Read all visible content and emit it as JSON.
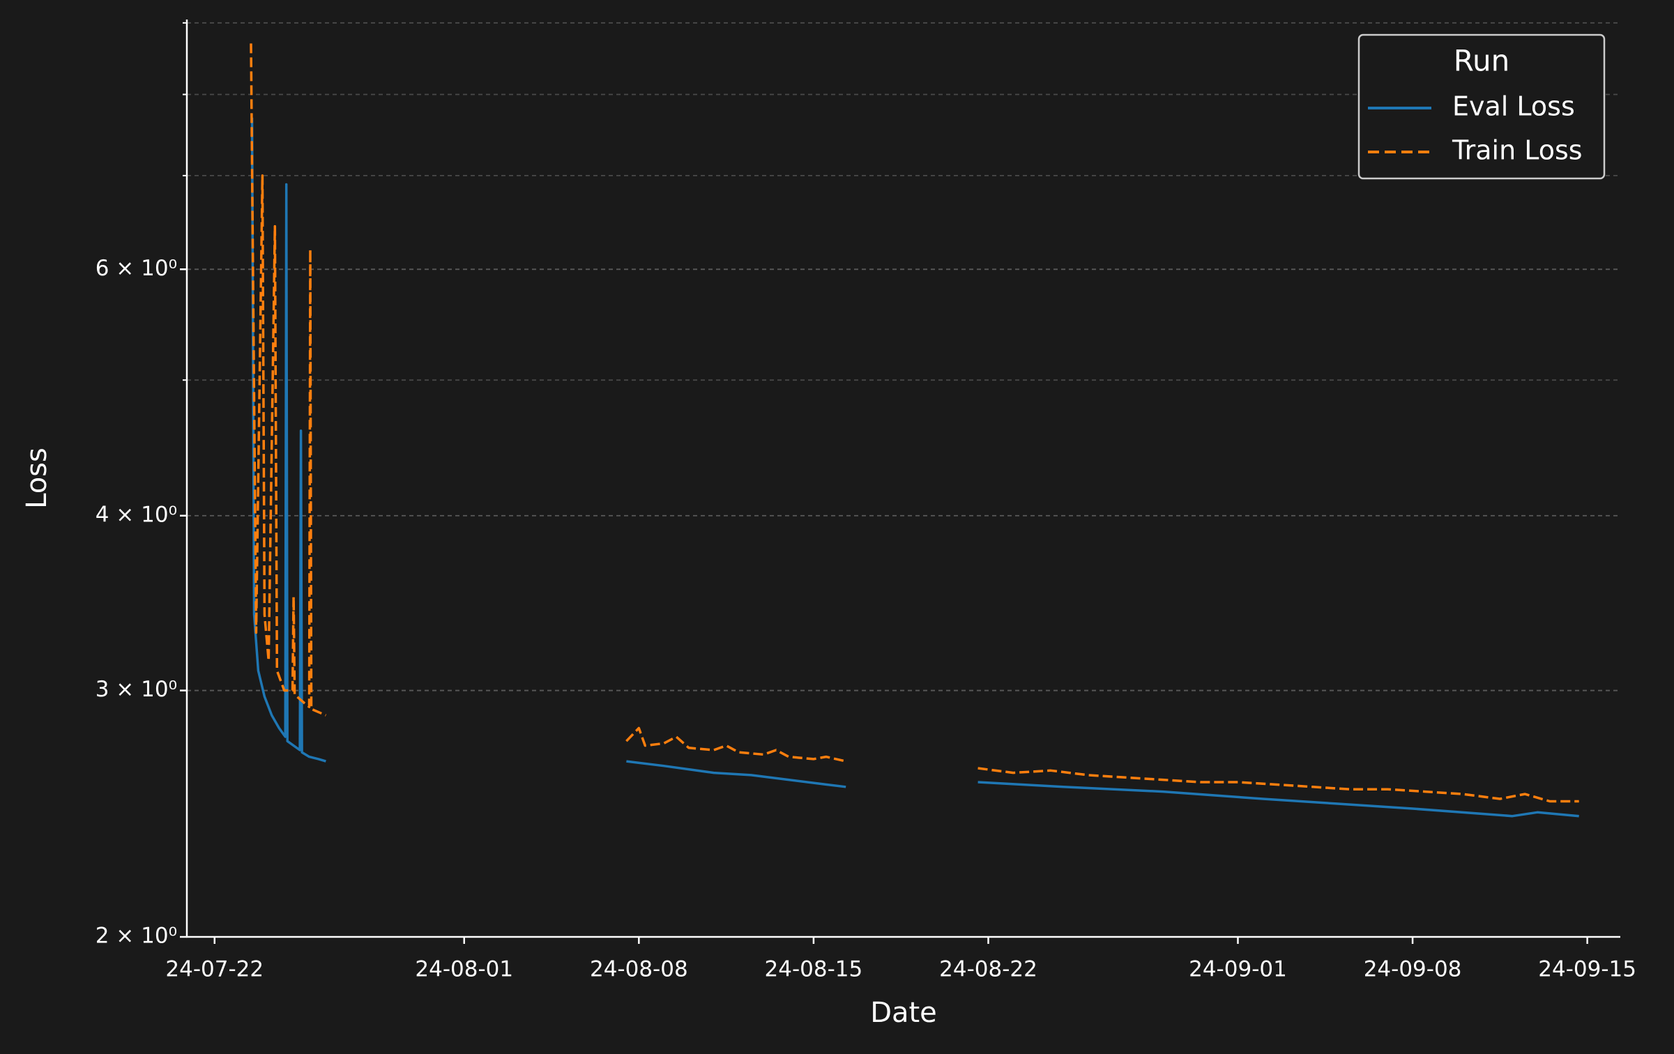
{
  "chart_data": {
    "type": "line",
    "xlabel": "Date",
    "ylabel": "Loss",
    "yscale": "log",
    "grid": true,
    "legend_title": "Run",
    "legend_loc": "upper right",
    "xlim": [
      "2024-07-20T21:20",
      "2024-09-16T07:45"
    ],
    "ylim": [
      2,
      9.05
    ],
    "xticks": [
      {
        "value": "2024-07-22T00:00",
        "label": "24-07-22"
      },
      {
        "value": "2024-08-01T00:00",
        "label": "24-08-01"
      },
      {
        "value": "2024-08-08T00:00",
        "label": "24-08-08"
      },
      {
        "value": "2024-08-15T00:00",
        "label": "24-08-15"
      },
      {
        "value": "2024-08-22T00:00",
        "label": "24-08-22"
      },
      {
        "value": "2024-09-01T00:00",
        "label": "24-09-01"
      },
      {
        "value": "2024-09-08T00:00",
        "label": "24-09-08"
      },
      {
        "value": "2024-09-15T00:00",
        "label": "24-09-15"
      }
    ],
    "yticks": [
      {
        "value": 2,
        "label": "2 × 10⁰"
      },
      {
        "value": 3,
        "label": "3 × 10⁰"
      },
      {
        "value": 4,
        "label": "4 × 10⁰"
      },
      {
        "value": 6,
        "label": "6 × 10⁰"
      }
    ],
    "yminor_ticks": [
      5,
      7,
      8,
      9
    ],
    "series": [
      {
        "name": "Eval Loss",
        "color": "#1f77b4",
        "linestyle": "solid",
        "x": [
          "2024-07-23T12:00",
          "2024-07-23T14:00",
          "2024-07-23T18:00",
          "2024-07-24T00:00",
          "2024-07-24T07:00",
          "2024-07-24T14:00",
          "2024-07-24T20:00",
          "2024-07-24T21:00",
          "2024-07-24T22:00",
          "2024-07-25T04:00",
          "2024-07-25T10:00",
          "2024-07-25T11:00",
          "2024-07-25T12:00",
          "2024-07-25T19:00",
          "2024-07-26T04:00",
          "2024-07-26T11:00",
          "2024-08-01T00:00",
          "2024-08-07T12:00",
          "2024-08-09T00:00",
          "2024-08-11T00:00",
          "2024-08-12T12:00",
          "2024-08-14T00:00",
          "2024-08-15T12:00",
          "2024-08-16T07:00",
          "2024-08-19T00:00",
          "2024-08-21T14:00",
          "2024-08-25T00:00",
          "2024-08-29T00:00",
          "2024-09-02T00:00",
          "2024-09-05T00:00",
          "2024-09-08T00:00",
          "2024-09-12T00:00",
          "2024-09-13T00:00",
          "2024-09-14T16:00"
        ],
        "values": [
          7.7,
          3.4,
          3.1,
          2.97,
          2.88,
          2.82,
          2.78,
          6.9,
          2.76,
          2.74,
          2.72,
          4.6,
          2.71,
          2.69,
          2.68,
          2.67,
          null,
          2.67,
          2.65,
          2.62,
          2.61,
          2.59,
          2.57,
          2.56,
          null,
          2.58,
          2.56,
          2.54,
          2.51,
          2.49,
          2.47,
          2.44,
          2.455,
          2.44
        ]
      },
      {
        "name": "Train Loss",
        "color": "#ff7f0e",
        "linestyle": "dashed",
        "x": [
          "2024-07-23T11:00",
          "2024-07-23T16:00",
          "2024-07-23T22:00",
          "2024-07-24T00:00",
          "2024-07-24T04:00",
          "2024-07-24T10:00",
          "2024-07-24T12:00",
          "2024-07-24T19:00",
          "2024-07-25T03:00",
          "2024-07-25T04:00",
          "2024-07-25T05:00",
          "2024-07-25T14:00",
          "2024-07-25T19:00",
          "2024-07-25T20:00",
          "2024-07-25T21:00",
          "2024-07-26T11:00",
          "2024-08-01T00:00",
          "2024-08-07T12:00",
          "2024-08-08T00:00",
          "2024-08-08T06:00",
          "2024-08-09T00:00",
          "2024-08-09T12:00",
          "2024-08-10T00:00",
          "2024-08-11T00:00",
          "2024-08-11T12:00",
          "2024-08-12T00:00",
          "2024-08-13T00:00",
          "2024-08-13T12:00",
          "2024-08-14T00:00",
          "2024-08-15T00:00",
          "2024-08-15T12:00",
          "2024-08-16T07:00",
          "2024-08-19T00:00",
          "2024-08-21T14:00",
          "2024-08-23T00:00",
          "2024-08-24T12:00",
          "2024-08-26T00:00",
          "2024-08-27T12:00",
          "2024-08-29T00:00",
          "2024-08-30T12:00",
          "2024-09-01T00:00",
          "2024-09-02T12:00",
          "2024-09-04T00:00",
          "2024-09-05T12:00",
          "2024-09-07T00:00",
          "2024-09-08T12:00",
          "2024-09-10T00:00",
          "2024-09-11T12:00",
          "2024-09-12T12:00",
          "2024-09-13T12:00",
          "2024-09-14T16:00"
        ],
        "values": [
          8.7,
          3.3,
          7.0,
          3.4,
          3.15,
          6.44,
          3.1,
          3.0,
          3.0,
          3.5,
          2.98,
          2.94,
          2.92,
          6.2,
          2.91,
          2.88,
          null,
          2.76,
          2.82,
          2.74,
          2.75,
          2.78,
          2.73,
          2.72,
          2.74,
          2.71,
          2.7,
          2.72,
          2.69,
          2.68,
          2.69,
          2.67,
          null,
          2.64,
          2.62,
          2.63,
          2.61,
          2.6,
          2.59,
          2.58,
          2.58,
          2.57,
          2.56,
          2.55,
          2.55,
          2.54,
          2.53,
          2.51,
          2.53,
          2.5,
          2.5
        ]
      }
    ]
  }
}
